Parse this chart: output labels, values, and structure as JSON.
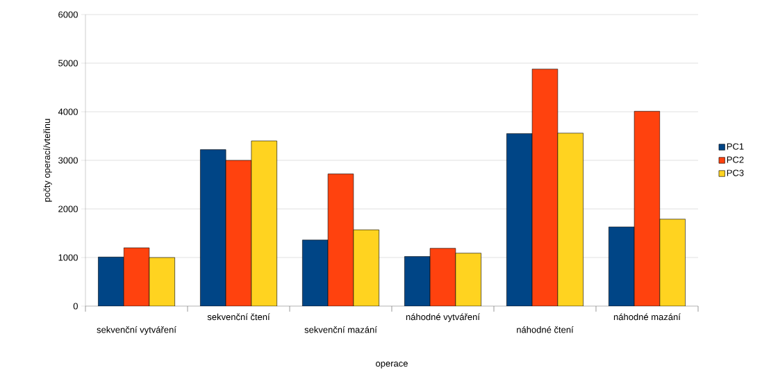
{
  "chart_data": {
    "type": "bar",
    "xlabel": "operace",
    "ylabel": "počty operací/vteřinu",
    "categories": [
      "sekvenční vytváření",
      "sekvenční čtení",
      "sekvenční mazání",
      "náhodné vytváření",
      "náhodné čtení",
      "náhodné mazání"
    ],
    "series": [
      {
        "name": "PC1",
        "color": "#004586",
        "values": [
          1010,
          3220,
          1360,
          1020,
          3550,
          1630
        ]
      },
      {
        "name": "PC2",
        "color": "#ff420e",
        "values": [
          1200,
          3000,
          2720,
          1190,
          4880,
          4010
        ]
      },
      {
        "name": "PC3",
        "color": "#ffd320",
        "values": [
          1000,
          3400,
          1570,
          1090,
          3560,
          1790
        ]
      }
    ],
    "ylim": [
      0,
      6000
    ],
    "yticks": [
      0,
      1000,
      2000,
      3000,
      4000,
      5000,
      6000
    ],
    "grid": "y",
    "legend": "right"
  }
}
